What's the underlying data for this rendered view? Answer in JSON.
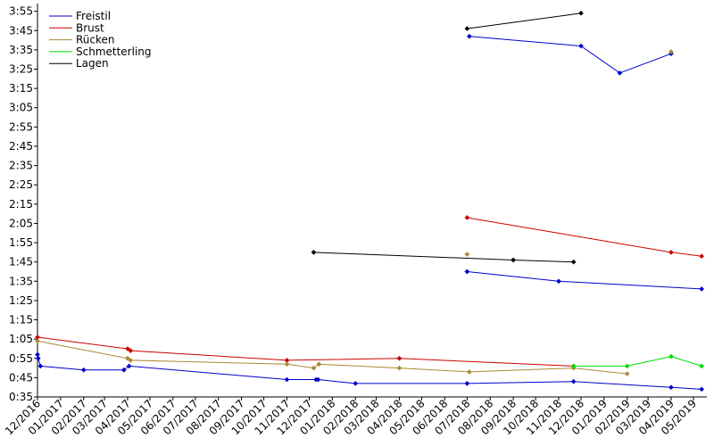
{
  "chart_data": {
    "type": "line",
    "title": "",
    "xlabel": "",
    "ylabel": "",
    "legend_position": "top-left",
    "grid": false,
    "y_tick_labels": [
      "0:35",
      "0:45",
      "0:55",
      "1:05",
      "1:15",
      "1:25",
      "1:35",
      "1:45",
      "1:55",
      "2:05",
      "2:15",
      "2:25",
      "2:35",
      "2:45",
      "2:55",
      "3:05",
      "3:15",
      "3:25",
      "3:35",
      "3:45",
      "3:55"
    ],
    "y_ticks_seconds": [
      35,
      45,
      55,
      65,
      75,
      85,
      95,
      105,
      115,
      125,
      135,
      145,
      155,
      165,
      175,
      185,
      195,
      205,
      215,
      225,
      235
    ],
    "ylim_seconds": [
      35,
      239
    ],
    "x_tick_labels": [
      "12/2016",
      "01/2017",
      "02/2017",
      "03/2017",
      "04/2017",
      "05/2017",
      "06/2017",
      "07/2017",
      "08/2017",
      "09/2017",
      "10/2017",
      "11/2017",
      "12/2017",
      "01/2018",
      "02/2018",
      "03/2018",
      "04/2018",
      "05/2018",
      "06/2018",
      "07/2018",
      "08/2018",
      "09/2018",
      "10/2018",
      "11/2018",
      "12/2018",
      "01/2019",
      "02/2019",
      "03/2019",
      "04/2019",
      "05/2019"
    ],
    "x_ticks": [
      "2016-12-01",
      "2017-01-01",
      "2017-02-01",
      "2017-03-01",
      "2017-04-01",
      "2017-05-01",
      "2017-06-01",
      "2017-07-01",
      "2017-08-01",
      "2017-09-01",
      "2017-10-01",
      "2017-11-01",
      "2017-12-01",
      "2018-01-01",
      "2018-02-01",
      "2018-03-01",
      "2018-04-01",
      "2018-05-01",
      "2018-06-01",
      "2018-07-01",
      "2018-08-01",
      "2018-09-01",
      "2018-10-01",
      "2018-11-01",
      "2018-12-01",
      "2019-01-01",
      "2019-02-01",
      "2019-03-01",
      "2019-04-01",
      "2019-05-01"
    ],
    "xlim": [
      "2016-12-01",
      "2019-05-19"
    ],
    "series": [
      {
        "name": "Freistil",
        "color": "#0000cc",
        "lines": [
          [
            [
              "2016-12-01",
              57
            ],
            [
              "2016-12-02",
              55
            ],
            [
              "2016-12-05",
              51
            ],
            [
              "2017-02-01",
              49
            ],
            [
              "2017-03-27",
              49
            ],
            [
              "2017-04-03",
              51
            ],
            [
              "2017-11-01",
              44
            ],
            [
              "2017-12-10",
              44
            ],
            [
              "2017-12-13",
              44
            ],
            [
              "2018-02-01",
              42
            ],
            [
              "2018-07-01",
              42
            ],
            [
              "2018-11-21",
              43
            ],
            [
              "2019-04-01",
              40
            ],
            [
              "2019-05-12",
              39
            ]
          ],
          [
            [
              "2018-07-01",
              100
            ],
            [
              "2018-11-01",
              95
            ],
            [
              "2019-05-12",
              91
            ]
          ],
          [
            [
              "2018-07-04",
              222
            ],
            [
              "2018-12-01",
              217
            ],
            [
              "2019-01-22",
              203
            ],
            [
              "2019-04-01",
              213
            ]
          ]
        ]
      },
      {
        "name": "Brust",
        "color": "#cc0000",
        "lines": [
          [
            [
              "2016-12-01",
              66
            ],
            [
              "2017-04-01",
              60
            ],
            [
              "2017-04-05",
              59
            ],
            [
              "2017-11-01",
              54
            ],
            [
              "2018-04-01",
              55
            ],
            [
              "2018-11-21",
              51
            ]
          ],
          [
            [
              "2018-07-01",
              128
            ],
            [
              "2019-04-01",
              110
            ],
            [
              "2019-05-12",
              108
            ]
          ]
        ]
      },
      {
        "name": "Rücken",
        "color": "#aa8833",
        "lines": [
          [
            [
              "2016-12-01",
              64
            ],
            [
              "2017-04-01",
              55
            ],
            [
              "2017-04-05",
              54
            ],
            [
              "2017-11-01",
              52
            ],
            [
              "2017-12-07",
              50
            ],
            [
              "2017-12-14",
              52
            ],
            [
              "2018-04-01",
              50
            ],
            [
              "2018-07-04",
              48
            ],
            [
              "2018-11-21",
              50
            ],
            [
              "2019-02-01",
              47
            ]
          ]
        ],
        "points": [
          [
            "2018-07-01",
            109
          ],
          [
            "2019-04-01",
            214
          ]
        ]
      },
      {
        "name": "Schmetterling",
        "color": "#00dd00",
        "lines": [
          [
            [
              "2018-11-21",
              51
            ],
            [
              "2019-02-01",
              51
            ],
            [
              "2019-04-01",
              56
            ],
            [
              "2019-05-12",
              51
            ]
          ]
        ]
      },
      {
        "name": "Lagen",
        "color": "#000000",
        "lines": [
          [
            [
              "2017-12-07",
              110
            ],
            [
              "2018-09-01",
              106
            ],
            [
              "2018-11-21",
              105
            ]
          ],
          [
            [
              "2018-07-01",
              226
            ],
            [
              "2018-12-01",
              234
            ]
          ]
        ]
      }
    ]
  }
}
